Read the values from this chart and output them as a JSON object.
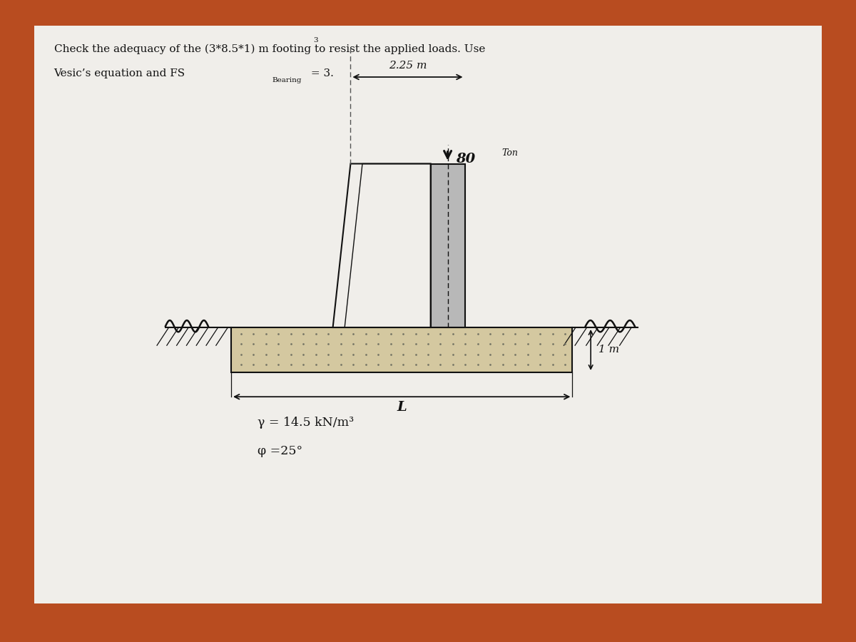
{
  "title_line1": "Check the adequacy of the (3*8.5*1) m footing to resist the applied loads. Use",
  "title_line2_part1": "Vesic’s equation and FS",
  "title_line2_sub": "Bearing",
  "title_line2_end": " = 3.",
  "superscript_3": "3",
  "dim_label": "2.25 m",
  "load_label": "80",
  "load_unit": "Ton",
  "depth_label": "1 m",
  "length_label": "L",
  "gamma_label": "γ = 14.5 kN/m³",
  "phi_label": "φ =25°",
  "bg_color": "#b84c20",
  "paper_color": "#f0eeea",
  "footing_fill": "#d4c8a0",
  "pedestal_fill": "#b8b8b8",
  "line_color": "#111111"
}
